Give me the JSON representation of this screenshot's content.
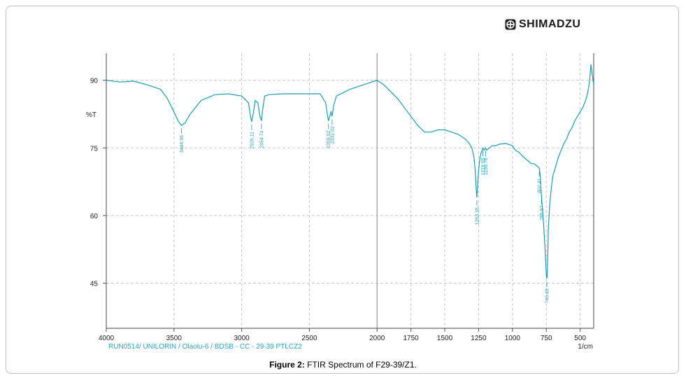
{
  "brand": {
    "logo_text": "SHIMADZU"
  },
  "caption": {
    "label": "Figure 2:",
    "text": "FTIR Spectrum of F29-39/Z1."
  },
  "chart_data": {
    "type": "line",
    "ylabel": "%T",
    "xunit": "1/cm",
    "footer": "RUN0514/ UNILORIN / Olaolu-6 /  BDSB - CC - 29-39 PTLCZ2",
    "xlim": [
      4000,
      400
    ],
    "ylim": [
      35,
      96
    ],
    "x_ticks": [
      4000,
      3500,
      3000,
      2500,
      2000,
      1750,
      1500,
      1250,
      1000,
      750,
      500
    ],
    "y_ticks": [
      90,
      75,
      60,
      45
    ],
    "grid": true,
    "line_color": "#1a9cb4",
    "series": [
      {
        "x": [
          4000,
          3900,
          3800,
          3700,
          3650,
          3600,
          3550,
          3500,
          3470,
          3445,
          3420,
          3380,
          3300,
          3200,
          3100,
          3000,
          2950,
          2935,
          2926,
          2915,
          2900,
          2880,
          2865,
          2854,
          2845,
          2830,
          2800,
          2700,
          2600,
          2500,
          2420,
          2380,
          2365,
          2359,
          2350,
          2340,
          2332,
          2320,
          2300,
          2200,
          2100,
          2000,
          1950,
          1900,
          1850,
          1800,
          1750,
          1700,
          1650,
          1600,
          1550,
          1500,
          1450,
          1400,
          1350,
          1320,
          1300,
          1285,
          1275,
          1268,
          1263,
          1258,
          1250,
          1240,
          1230,
          1219,
          1210,
          1198,
          1190,
          1170,
          1150,
          1120,
          1100,
          1050,
          1000,
          980,
          950,
          920,
          900,
          880,
          860,
          840,
          820,
          810,
          802,
          795,
          790,
          780,
          770,
          760,
          755,
          750,
          748,
          746,
          744,
          740,
          735,
          725,
          715,
          705,
          700,
          690,
          680,
          670,
          660,
          640,
          620,
          600,
          580,
          560,
          540,
          520,
          500,
          480,
          460,
          450,
          440,
          430,
          425,
          420,
          410,
          400
        ],
        "y": [
          90.0,
          89.6,
          89.8,
          89.0,
          88.5,
          88.0,
          86.0,
          83.0,
          81.0,
          80.0,
          80.5,
          82.5,
          85.5,
          86.8,
          87.0,
          86.5,
          85.0,
          82.0,
          80.8,
          82.5,
          85.5,
          85.0,
          82.0,
          81.0,
          83.5,
          86.5,
          86.8,
          87.0,
          87.0,
          87.0,
          87.0,
          85.0,
          82.0,
          81.0,
          82.0,
          83.0,
          82.0,
          84.5,
          86.5,
          88.0,
          89.0,
          90.0,
          89.0,
          87.5,
          86.0,
          84.0,
          82.0,
          80.0,
          78.5,
          78.5,
          79.0,
          79.0,
          78.5,
          78.0,
          77.0,
          76.0,
          75.0,
          73.0,
          70.0,
          66.0,
          64.0,
          66.5,
          70.0,
          73.0,
          74.0,
          75.0,
          74.5,
          75.0,
          74.5,
          75.0,
          75.5,
          75.5,
          75.8,
          76.0,
          75.5,
          74.5,
          74.0,
          73.0,
          72.5,
          72.0,
          71.5,
          71.5,
          71.0,
          70.8,
          70.5,
          69.0,
          66.0,
          62.0,
          58.0,
          53.0,
          50.0,
          47.0,
          46.5,
          46.0,
          46.5,
          50.0,
          57.0,
          62.5,
          65.5,
          68.0,
          69.0,
          70.0,
          71.0,
          72.0,
          73.0,
          74.5,
          76.0,
          77.0,
          78.5,
          79.5,
          81.0,
          82.0,
          83.0,
          84.0,
          85.5,
          86.5,
          88.0,
          90.0,
          92.0,
          93.5,
          91.0,
          89.0
        ]
      }
    ],
    "annotations": [
      {
        "label": "3444.98",
        "x": 3445
      },
      {
        "label": "2926.11",
        "x": 2926
      },
      {
        "label": "2854.74",
        "x": 2854
      },
      {
        "label": "2359.02",
        "x": 2359
      },
      {
        "label": "2332.02",
        "x": 2332
      },
      {
        "label": "1263.35",
        "x": 1263
      },
      {
        "label": "1219.05",
        "x": 1219
      },
      {
        "label": "1198.76",
        "x": 1198
      },
      {
        "label": "802.41",
        "x": 802
      },
      {
        "label": "785.97",
        "x": 786
      },
      {
        "label": "746.48",
        "x": 746
      }
    ]
  }
}
